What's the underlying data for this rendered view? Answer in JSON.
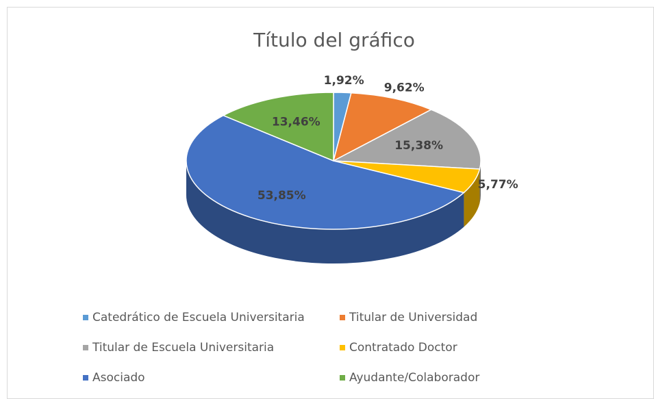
{
  "chart_data": {
    "type": "pie",
    "title": "Título del gráfico",
    "categories": [
      "Catedrático de Escuela Universitaria",
      "Titular de Universidad",
      "Titular de Escuela Universitaria",
      "Contratado Doctor",
      "Asociado",
      "Ayudante/Colaborador"
    ],
    "values": [
      1.92,
      9.62,
      15.38,
      5.77,
      53.85,
      13.46
    ],
    "value_labels": [
      "1,92%",
      "9,62%",
      "15,38%",
      "5,77%",
      "53,85%",
      "13,46%"
    ],
    "colors": [
      "#5b9bd5",
      "#ed7d31",
      "#a5a5a5",
      "#ffc000",
      "#4472c4",
      "#70ad47"
    ],
    "legend": "bottom"
  }
}
